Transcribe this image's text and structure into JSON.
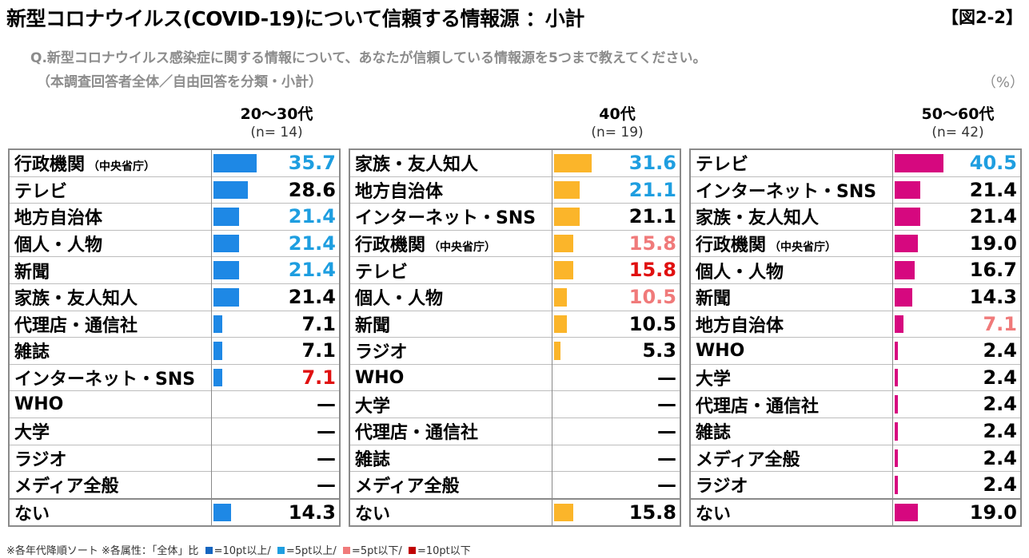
{
  "header": {
    "title": "新型コロナウイルス(COVID-19)について信頼する情報源 ：小計",
    "figure_id": "【図2-2】",
    "question": "Q.新型コロナウイルス感染症に関する情報について、あなたが信頼している情報源を5つまで教えてください。",
    "question_note": "（本調査回答者全体／自由回答を分類・小計）",
    "unit": "（%）"
  },
  "colors": {
    "bar_20_30": "#1e88e5",
    "bar_40": "#fbb52a",
    "bar_50_60": "#d6087f",
    "above_10pt": "#1565c0",
    "above_5pt": "#1e9ee0",
    "below_5pt": "#f07a7a",
    "below_10pt": "#e01010",
    "neutral": "#000000"
  },
  "footnote": {
    "text1": "※各年代降順ソート ※各属性：「全体」比",
    "leg1": "=10pt以上/",
    "leg2": "=5pt以上/",
    "leg3": "=5pt以下/",
    "leg4": "=10pt以下"
  },
  "chart_data": [
    {
      "type": "bar",
      "title": "20～30代",
      "n_label": "(n=  14)",
      "xlim": [
        0,
        100
      ],
      "rows": [
        {
          "label": "行政機関",
          "sub": "（中央省庁）",
          "value": 35.7,
          "display": "35.7",
          "status": "above_5pt"
        },
        {
          "label": "テレビ",
          "sub": "",
          "value": 28.6,
          "display": "28.6",
          "status": "neutral"
        },
        {
          "label": "地方自治体",
          "sub": "",
          "value": 21.4,
          "display": "21.4",
          "status": "above_5pt"
        },
        {
          "label": "個人・人物",
          "sub": "",
          "value": 21.4,
          "display": "21.4",
          "status": "above_5pt"
        },
        {
          "label": "新聞",
          "sub": "",
          "value": 21.4,
          "display": "21.4",
          "status": "above_5pt"
        },
        {
          "label": "家族・友人知人",
          "sub": "",
          "value": 21.4,
          "display": "21.4",
          "status": "neutral"
        },
        {
          "label": "代理店・通信社",
          "sub": "",
          "value": 7.1,
          "display": "7.1",
          "status": "neutral"
        },
        {
          "label": "雑誌",
          "sub": "",
          "value": 7.1,
          "display": "7.1",
          "status": "neutral"
        },
        {
          "label": "インターネット・SNS",
          "sub": "",
          "value": 7.1,
          "display": "7.1",
          "status": "below_10pt"
        },
        {
          "label": "WHO",
          "sub": "",
          "value": 0,
          "display": "—",
          "status": "neutral"
        },
        {
          "label": "大学",
          "sub": "",
          "value": 0,
          "display": "—",
          "status": "neutral"
        },
        {
          "label": "ラジオ",
          "sub": "",
          "value": 0,
          "display": "—",
          "status": "neutral"
        },
        {
          "label": "メディア全般",
          "sub": "",
          "value": 0,
          "display": "—",
          "status": "neutral"
        },
        {
          "label": "ない",
          "sub": "",
          "value": 14.3,
          "display": "14.3",
          "status": "neutral"
        }
      ]
    },
    {
      "type": "bar",
      "title": "40代",
      "n_label": "(n=  19)",
      "xlim": [
        0,
        100
      ],
      "rows": [
        {
          "label": "家族・友人知人",
          "sub": "",
          "value": 31.6,
          "display": "31.6",
          "status": "above_5pt"
        },
        {
          "label": "地方自治体",
          "sub": "",
          "value": 21.1,
          "display": "21.1",
          "status": "above_5pt"
        },
        {
          "label": "インターネット・SNS",
          "sub": "",
          "value": 21.1,
          "display": "21.1",
          "status": "neutral"
        },
        {
          "label": "行政機関",
          "sub": "（中央省庁）",
          "value": 15.8,
          "display": "15.8",
          "status": "below_5pt"
        },
        {
          "label": "テレビ",
          "sub": "",
          "value": 15.8,
          "display": "15.8",
          "status": "below_10pt"
        },
        {
          "label": "個人・人物",
          "sub": "",
          "value": 10.5,
          "display": "10.5",
          "status": "below_5pt"
        },
        {
          "label": "新聞",
          "sub": "",
          "value": 10.5,
          "display": "10.5",
          "status": "neutral"
        },
        {
          "label": "ラジオ",
          "sub": "",
          "value": 5.3,
          "display": "5.3",
          "status": "neutral"
        },
        {
          "label": "WHO",
          "sub": "",
          "value": 0,
          "display": "—",
          "status": "neutral"
        },
        {
          "label": "大学",
          "sub": "",
          "value": 0,
          "display": "—",
          "status": "neutral"
        },
        {
          "label": "代理店・通信社",
          "sub": "",
          "value": 0,
          "display": "—",
          "status": "neutral"
        },
        {
          "label": "雑誌",
          "sub": "",
          "value": 0,
          "display": "—",
          "status": "neutral"
        },
        {
          "label": "メディア全般",
          "sub": "",
          "value": 0,
          "display": "—",
          "status": "neutral"
        },
        {
          "label": "ない",
          "sub": "",
          "value": 15.8,
          "display": "15.8",
          "status": "neutral"
        }
      ]
    },
    {
      "type": "bar",
      "title": "50～60代",
      "n_label": "(n=  42)",
      "xlim": [
        0,
        100
      ],
      "rows": [
        {
          "label": "テレビ",
          "sub": "",
          "value": 40.5,
          "display": "40.5",
          "status": "above_5pt"
        },
        {
          "label": "インターネット・SNS",
          "sub": "",
          "value": 21.4,
          "display": "21.4",
          "status": "neutral"
        },
        {
          "label": "家族・友人知人",
          "sub": "",
          "value": 21.4,
          "display": "21.4",
          "status": "neutral"
        },
        {
          "label": "行政機関",
          "sub": "（中央省庁）",
          "value": 19.0,
          "display": "19.0",
          "status": "neutral"
        },
        {
          "label": "個人・人物",
          "sub": "",
          "value": 16.7,
          "display": "16.7",
          "status": "neutral"
        },
        {
          "label": "新聞",
          "sub": "",
          "value": 14.3,
          "display": "14.3",
          "status": "neutral"
        },
        {
          "label": "地方自治体",
          "sub": "",
          "value": 7.1,
          "display": "7.1",
          "status": "below_5pt"
        },
        {
          "label": "WHO",
          "sub": "",
          "value": 2.4,
          "display": "2.4",
          "status": "neutral"
        },
        {
          "label": "大学",
          "sub": "",
          "value": 2.4,
          "display": "2.4",
          "status": "neutral"
        },
        {
          "label": "代理店・通信社",
          "sub": "",
          "value": 2.4,
          "display": "2.4",
          "status": "neutral"
        },
        {
          "label": "雑誌",
          "sub": "",
          "value": 2.4,
          "display": "2.4",
          "status": "neutral"
        },
        {
          "label": "メディア全般",
          "sub": "",
          "value": 2.4,
          "display": "2.4",
          "status": "neutral"
        },
        {
          "label": "ラジオ",
          "sub": "",
          "value": 2.4,
          "display": "2.4",
          "status": "neutral"
        },
        {
          "label": "ない",
          "sub": "",
          "value": 19.0,
          "display": "19.0",
          "status": "neutral"
        }
      ]
    }
  ]
}
